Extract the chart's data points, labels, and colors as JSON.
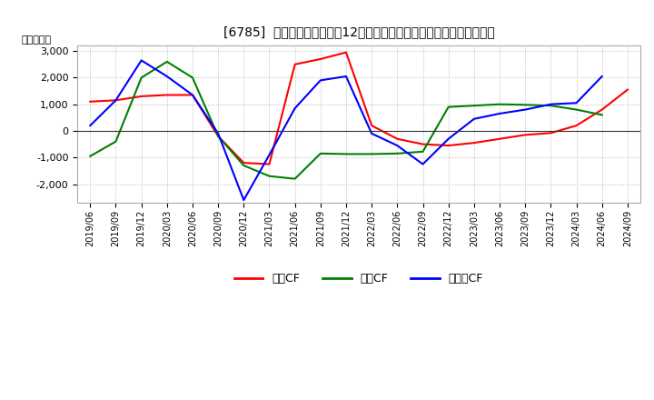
{
  "title": "[6785]  キャッシュフローの12か月移動合計の対前年同期増減額の推移",
  "ylabel": "（百万円）",
  "background_color": "#ffffff",
  "plot_bg_color": "#ffffff",
  "grid_color": "#aaaaaa",
  "ylim": [
    -2700,
    3200
  ],
  "yticks": [
    -2000,
    -1000,
    0,
    1000,
    2000,
    3000
  ],
  "x_labels": [
    "2019/06",
    "2019/09",
    "2019/12",
    "2020/03",
    "2020/06",
    "2020/09",
    "2020/12",
    "2021/03",
    "2021/06",
    "2021/09",
    "2021/12",
    "2022/03",
    "2022/06",
    "2022/09",
    "2022/12",
    "2023/03",
    "2023/06",
    "2023/09",
    "2023/12",
    "2024/03",
    "2024/06",
    "2024/09"
  ],
  "legend_labels": [
    "営業CF",
    "投資CF",
    "フリーCF"
  ],
  "legend_colors": [
    "#ff0000",
    "#008000",
    "#0000ff"
  ],
  "series": {
    "営業CF": {
      "color": "#ff0000",
      "data": [
        1100,
        1150,
        1300,
        1350,
        1350,
        -200,
        -1200,
        -1250,
        2500,
        2700,
        2950,
        200,
        -300,
        -500,
        -550,
        -450,
        -300,
        -150,
        -80,
        200,
        800,
        1550
      ]
    },
    "投資CF": {
      "color": "#008000",
      "data": [
        -950,
        -400,
        2000,
        2600,
        2000,
        -200,
        -1300,
        -1700,
        -1800,
        -850,
        -870,
        -870,
        -850,
        -780,
        900,
        950,
        1000,
        980,
        950,
        800,
        600,
        null
      ]
    },
    "フリーCF": {
      "color": "#0000ff",
      "data": [
        200,
        1150,
        2650,
        2050,
        1350,
        -100,
        -2600,
        -900,
        850,
        1900,
        2050,
        -100,
        -550,
        -1250,
        -300,
        450,
        650,
        800,
        1000,
        1050,
        2050,
        null
      ]
    }
  }
}
